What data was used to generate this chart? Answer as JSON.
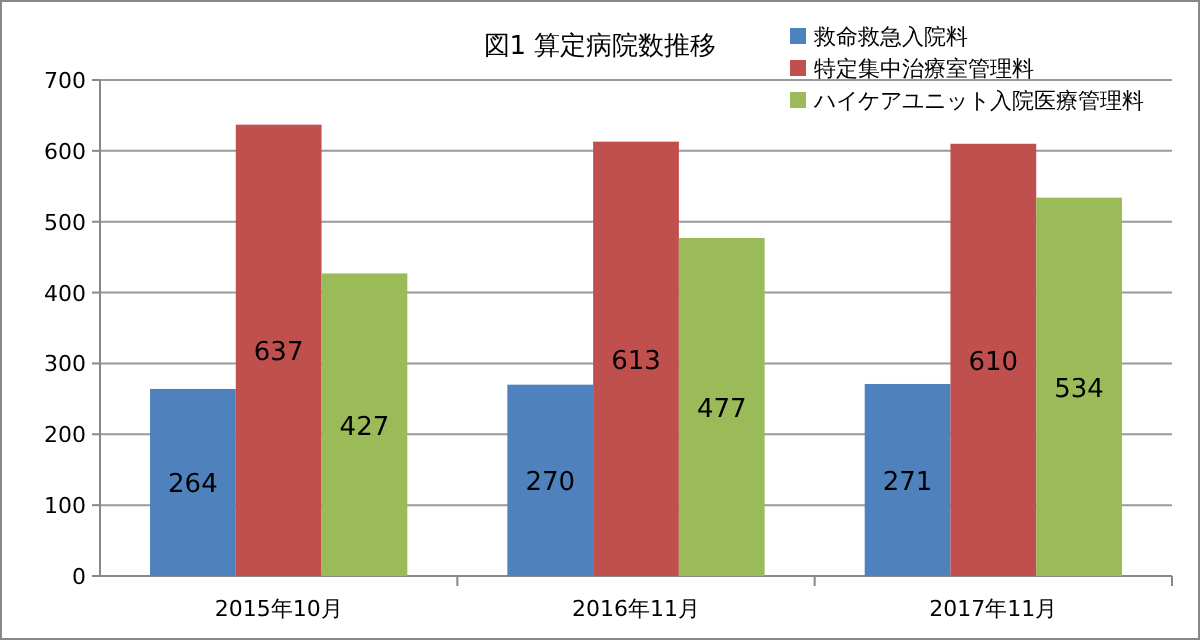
{
  "chart_data": {
    "type": "bar",
    "title": "図1 算定病院数推移",
    "categories": [
      "2015年10月",
      "2016年11月",
      "2017年11月"
    ],
    "series": [
      {
        "name": "救命救急入院料",
        "color": "#4f81bd",
        "values": [
          264,
          270,
          271
        ]
      },
      {
        "name": "特定集中治療室管理料",
        "color": "#c0504d",
        "values": [
          637,
          613,
          610
        ]
      },
      {
        "name": "ハイケアユニット入院医療管理料",
        "color": "#9bbb59",
        "values": [
          427,
          477,
          534
        ]
      }
    ],
    "ylim": [
      0,
      700
    ],
    "yticks": [
      0,
      100,
      200,
      300,
      400,
      500,
      600,
      700
    ],
    "grid": "y",
    "legend": "top right",
    "data_labels": true
  }
}
